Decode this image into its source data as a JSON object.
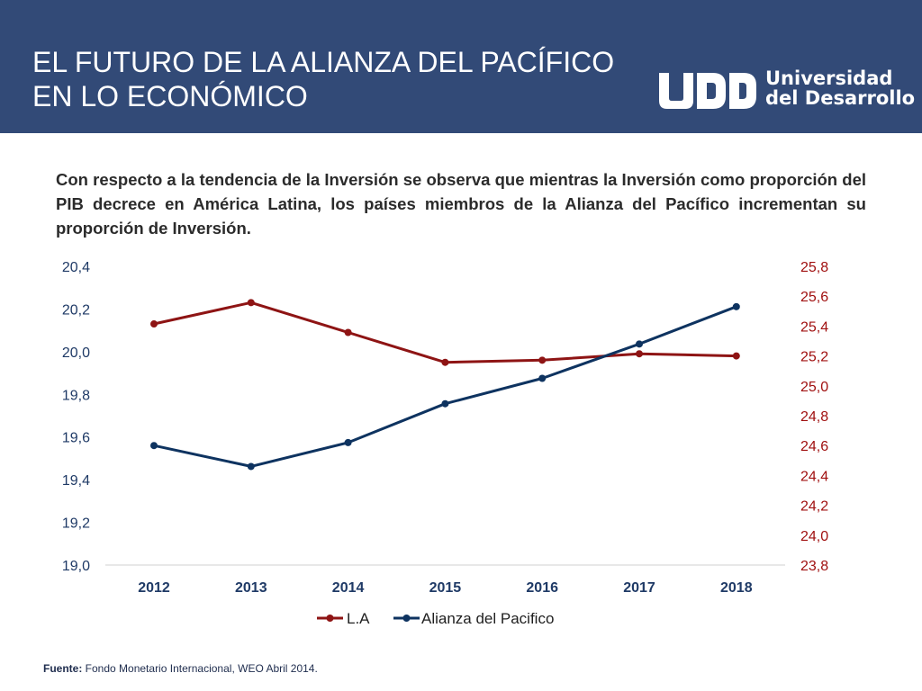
{
  "header": {
    "title_line1": "EL FUTURO DE LA ALIANZA DEL PACÍFICO",
    "title_line2": "EN LO ECONÓMICO",
    "logo_line1": "Universidad",
    "logo_line2": "del Desarrollo",
    "logo_mark": "UDD",
    "background_color": "#324a77"
  },
  "intro": {
    "text": "Con respecto a la tendencia de la Inversión se observa que mientras la Inversión como proporción del PIB decrece en América Latina, los países miembros de la Alianza del Pacífico incrementan su proporción de Inversión."
  },
  "chart_data": {
    "type": "line",
    "x": [
      "2012",
      "2013",
      "2014",
      "2015",
      "2016",
      "2017",
      "2018"
    ],
    "series": [
      {
        "name": "L.A",
        "axis": "left",
        "color": "#8e1414",
        "values": [
          20.13,
          20.23,
          20.09,
          19.95,
          19.96,
          19.99,
          19.98
        ]
      },
      {
        "name": "Alianza del Pacifico",
        "axis": "right",
        "color": "#0e3360",
        "values": [
          24.6,
          24.46,
          24.62,
          24.88,
          25.05,
          25.28,
          25.53
        ]
      }
    ],
    "y_left": {
      "range": [
        19.0,
        20.4
      ],
      "ticks": [
        "19,0",
        "19,2",
        "19,4",
        "19,6",
        "19,8",
        "20,0",
        "20,2",
        "20,4"
      ],
      "color": "#1f3a66"
    },
    "y_right": {
      "range": [
        23.8,
        25.8
      ],
      "ticks": [
        "23,8",
        "24,0",
        "24,2",
        "24,4",
        "24,6",
        "24,8",
        "25,0",
        "25,2",
        "25,4",
        "25,6",
        "25,8"
      ],
      "color": "#a01010"
    },
    "x_tick_color": "#1f3a66",
    "grid": false,
    "legend_position": "bottom"
  },
  "footer": {
    "source_label": "Fuente:",
    "source_text": " Fondo Monetario Internacional, WEO Abril 2014."
  }
}
